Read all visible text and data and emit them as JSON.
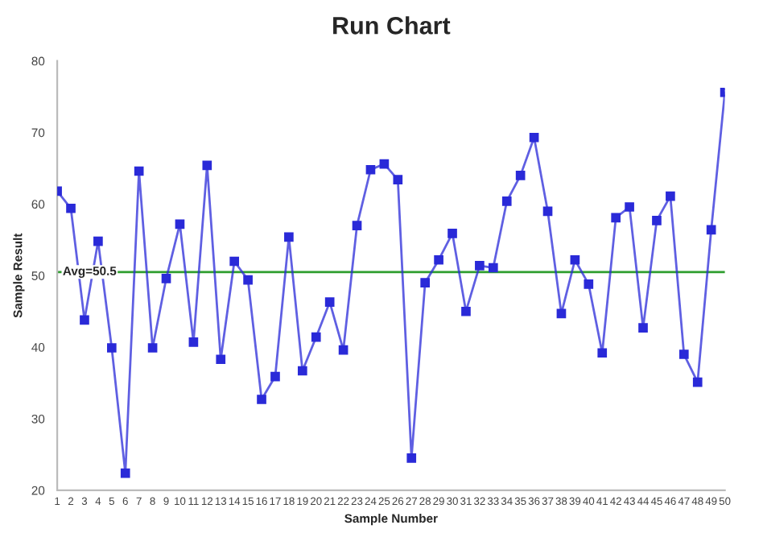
{
  "chart_data": {
    "type": "line",
    "title": "Run Chart",
    "xlabel": "Sample Number",
    "ylabel": "Sample Result",
    "x": [
      1,
      2,
      3,
      4,
      5,
      6,
      7,
      8,
      9,
      10,
      11,
      12,
      13,
      14,
      15,
      16,
      17,
      18,
      19,
      20,
      21,
      22,
      23,
      24,
      25,
      26,
      27,
      28,
      29,
      30,
      31,
      32,
      33,
      34,
      35,
      36,
      37,
      38,
      39,
      40,
      41,
      42,
      43,
      44,
      45,
      46,
      47,
      48,
      49,
      50
    ],
    "series": [
      {
        "color": "#2a2ad8",
        "values": [
          61.8,
          59.4,
          43.8,
          54.8,
          39.9,
          22.4,
          64.6,
          39.9,
          49.6,
          57.2,
          40.7,
          65.4,
          38.3,
          52.0,
          49.4,
          32.7,
          35.9,
          55.4,
          36.7,
          41.4,
          46.3,
          39.6,
          57.0,
          64.8,
          65.6,
          63.4,
          24.5,
          49.0,
          52.2,
          55.9,
          45.0,
          51.4,
          51.1,
          60.4,
          64.0,
          69.3,
          59.0,
          44.7,
          52.2,
          48.8,
          39.2,
          58.1,
          59.6,
          42.7,
          57.7,
          61.1,
          39.0,
          35.1,
          56.4,
          75.6
        ]
      }
    ],
    "xlim": [
      1,
      50
    ],
    "xticks": [
      1,
      2,
      3,
      4,
      5,
      6,
      7,
      8,
      9,
      10,
      11,
      12,
      13,
      14,
      15,
      16,
      17,
      18,
      19,
      20,
      21,
      22,
      23,
      24,
      25,
      26,
      27,
      28,
      29,
      30,
      31,
      32,
      33,
      34,
      35,
      36,
      37,
      38,
      39,
      40,
      41,
      42,
      43,
      44,
      45,
      46,
      47,
      48,
      49,
      50
    ],
    "ylim": [
      20,
      80
    ],
    "yticks": [
      20,
      30,
      40,
      50,
      60,
      70,
      80
    ],
    "ref_lines": [
      {
        "axis": "y",
        "value": 50.5,
        "label": "Avg=50.5",
        "color": "#2e9e2e",
        "line_style": "solid"
      }
    ],
    "marker": "square",
    "line_style": "solid",
    "grid": false,
    "legend": false
  }
}
